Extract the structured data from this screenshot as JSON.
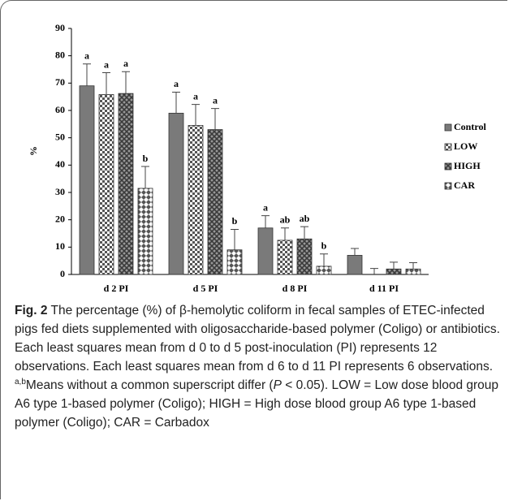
{
  "chart_data": {
    "type": "bar",
    "y_label": "%",
    "categories": [
      "d 2 PI",
      "d 5 PI",
      "d 8 PI",
      "d 11 PI"
    ],
    "series": [
      {
        "name": "Control",
        "color": "#7a7a7a",
        "values": [
          69,
          59,
          17,
          7
        ],
        "errors": [
          8,
          7.7,
          4.5,
          2.5
        ],
        "letters": [
          "a",
          "a",
          "a",
          null
        ]
      },
      {
        "name": "LOW",
        "color": "#555555",
        "values": [
          65.8,
          54.5,
          12.5,
          0
        ],
        "errors": [
          8,
          7.7,
          4.5,
          2.2
        ],
        "letters": [
          "a",
          "a",
          "ab",
          null
        ]
      },
      {
        "name": "HIGH",
        "color": "#3a3a3a",
        "values": [
          66.2,
          53,
          13,
          2
        ],
        "errors": [
          8,
          7.7,
          4.5,
          2.5
        ],
        "letters": [
          "a",
          "a",
          "ab",
          null
        ]
      },
      {
        "name": "CAR",
        "color": "#555555",
        "values": [
          31.5,
          9,
          3,
          2
        ],
        "errors": [
          8,
          7.5,
          4.5,
          2.3
        ],
        "letters": [
          "b",
          "b",
          "b",
          null
        ]
      }
    ],
    "ylim": [
      0,
      90
    ],
    "yticks": [
      0,
      10,
      20,
      30,
      40,
      50,
      60,
      70,
      80,
      90
    ],
    "legend": "right"
  },
  "caption": {
    "label": "Fig. 2",
    "text": " The percentage (%) of β-hemolytic coliform in fecal samples of ETEC-infected pigs fed diets supplemented with oligosaccharide-based polymer (Coligo) or antibiotics. Each least squares mean from d 0 to d 5 post-inoculation (PI) represents 12 observations. Each least squares mean from d 6 to d 11 PI represents 6 observations. ",
    "superscript": "a,b",
    "text2": "Means without a common superscript differ (",
    "italic": "P",
    "text3": " < 0.05). LOW = Low dose blood group A6 type 1-based polymer (Coligo); HIGH = High dose blood group A6 type 1-based polymer (Coligo); CAR = Carbadox"
  }
}
